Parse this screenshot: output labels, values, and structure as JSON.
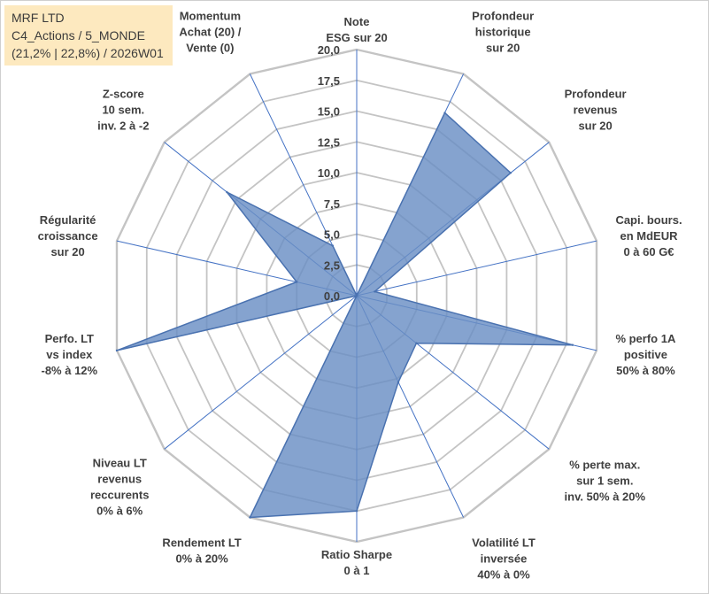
{
  "title_box": {
    "line1": "MRF LTD",
    "line2": "C4_Actions / 5_MONDE",
    "line3": "(21,2% | 22,8%) / 2026W01"
  },
  "chart_data": {
    "type": "radar",
    "scale": {
      "min": 0,
      "max": 20,
      "step": 2.5
    },
    "tick_labels": [
      "0,0",
      "2,5",
      "5,0",
      "7,5",
      "10,0",
      "12,5",
      "15,0",
      "17,5",
      "20,0"
    ],
    "axes": [
      {
        "label": [
          "Note",
          "ESG sur 20"
        ],
        "value": 0
      },
      {
        "label": [
          "Profondeur",
          "historique",
          "sur 20"
        ],
        "value": 16.5
      },
      {
        "label": [
          "Profondeur",
          "revenus",
          "sur 20"
        ],
        "value": 16
      },
      {
        "label": [
          "Capi. bours.",
          "en MdEUR",
          "0 à 60 G€"
        ],
        "value": 1.5
      },
      {
        "label": [
          "% perfo 1A",
          "positive",
          "50% à 80%"
        ],
        "value": 18
      },
      {
        "label": [
          "% perte max.",
          "sur 1 sem.",
          "inv. 50% à 20%"
        ],
        "value": 6.2
      },
      {
        "label": [
          "Volatilité LT",
          "inversée",
          "40% à 0%"
        ],
        "value": 7.8
      },
      {
        "label": [
          "Ratio Sharpe",
          "0 à 1"
        ],
        "value": 17.5
      },
      {
        "label": [
          "Rendement LT",
          "0% à 20%"
        ],
        "value": 20
      },
      {
        "label": [
          "Niveau LT",
          "revenus",
          "reccurents",
          "0% à 6%"
        ],
        "value": 0
      },
      {
        "label": [
          "Perfo. LT",
          "vs index",
          "-8% à 12%"
        ],
        "value": 20
      },
      {
        "label": [
          "Régularité",
          "croissance",
          "sur 20"
        ],
        "value": 5
      },
      {
        "label": [
          "Z-score",
          "10 sem.",
          "inv. 2 à -2"
        ],
        "value": 13.5
      },
      {
        "label": [
          "Momentum",
          "Achat (20) /",
          "Vente (0)"
        ],
        "value": 4.5
      }
    ],
    "colors": {
      "fill": "#6a8fc4",
      "stroke": "#4a72b0",
      "grid": "#c4c4c4",
      "spoke": "#4472c4"
    }
  }
}
